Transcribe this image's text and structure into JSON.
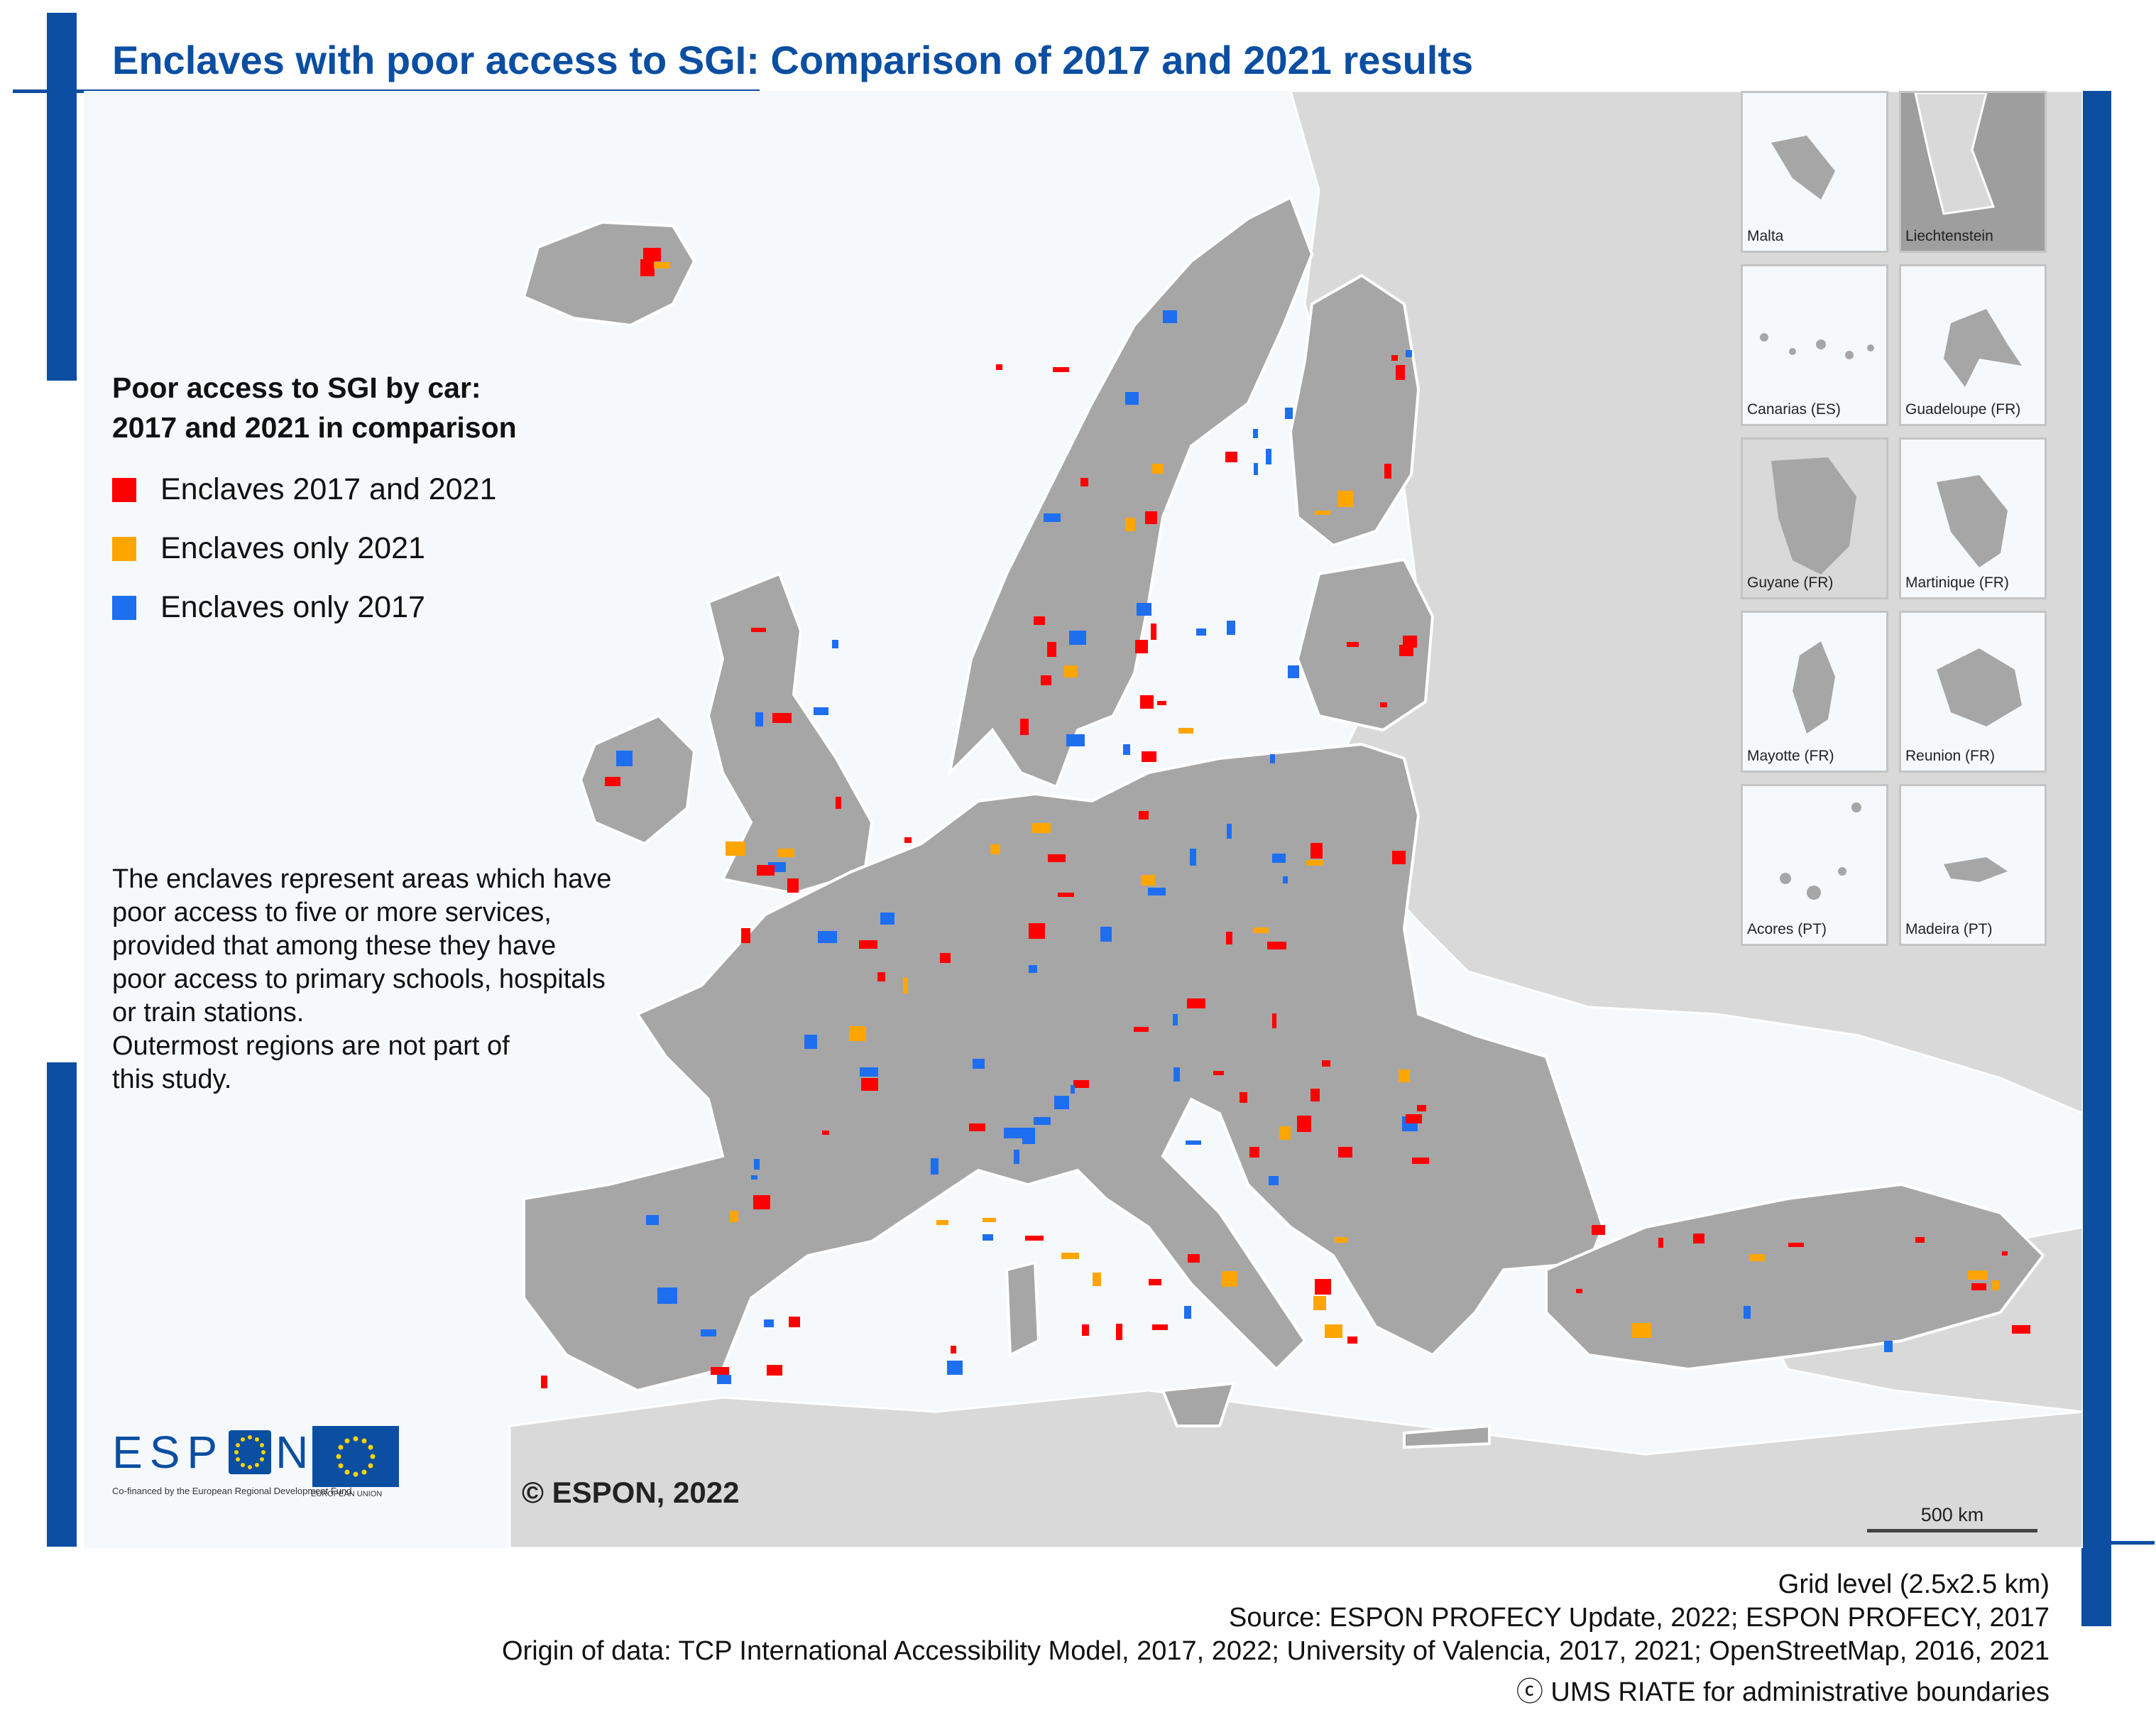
{
  "title": "Enclaves with poor access to SGI: Comparison of 2017 and 2021 results",
  "legend": {
    "title_line1": "Poor access to SGI by car:",
    "title_line2": "2017 and 2021 in comparison",
    "items": [
      {
        "label": "Enclaves 2017 and 2021",
        "color": "#ff0000"
      },
      {
        "label": "Enclaves only 2021",
        "color": "#ffa500"
      },
      {
        "label": "Enclaves only 2017",
        "color": "#1e6ef0"
      }
    ]
  },
  "description": "The enclaves represent areas which have\npoor access to five or more services,\nprovided that among these they have\npoor access to primary schools, hospitals\nor train stations.\nOutermost regions are not part of\nthis study.",
  "insets": [
    {
      "label": "Malta",
      "bg": "#f5f9fc"
    },
    {
      "label": "Liechtenstein",
      "bg": "#9e9e9e"
    },
    {
      "label": "Canarias (ES)",
      "bg": "#f5f9fc"
    },
    {
      "label": "Guadeloupe (FR)",
      "bg": "#f5f9fc"
    },
    {
      "label": "Guyane (FR)",
      "bg": "#d9d9d9"
    },
    {
      "label": "Martinique (FR)",
      "bg": "#f5f9fc"
    },
    {
      "label": "Mayotte (FR)",
      "bg": "#f5f9fc"
    },
    {
      "label": "Reunion (FR)",
      "bg": "#f5f9fc"
    },
    {
      "label": "Acores (PT)",
      "bg": "#f5f9fc"
    },
    {
      "label": "Madeira (PT)",
      "bg": "#f5f9fc"
    }
  ],
  "logo": {
    "espon_left": "ESP",
    "espon_right": "N",
    "cofinanced": "Co-financed by the European Regional Development Fund",
    "eu_label": "EUROPEAN UNION"
  },
  "copyright": "© ESPON, 2022",
  "scale_label": "500 km",
  "sources": [
    "Grid level (2.5x2.5 km)",
    "Source: ESPON PROFECY Update, 2022; ESPON PROFECY, 2017",
    "Origin of data: TCP International Accessibility Model, 2017, 2022; University of Valencia, 2017, 2021; OpenStreetMap, 2016, 2021",
    "ⓒ UMS RIATE for administrative boundaries"
  ],
  "colors": {
    "accent": "#0b4ea2",
    "land_study": "#a6a6a6",
    "land_other": "#d9d9d9",
    "sea": "#f5f9fc"
  }
}
